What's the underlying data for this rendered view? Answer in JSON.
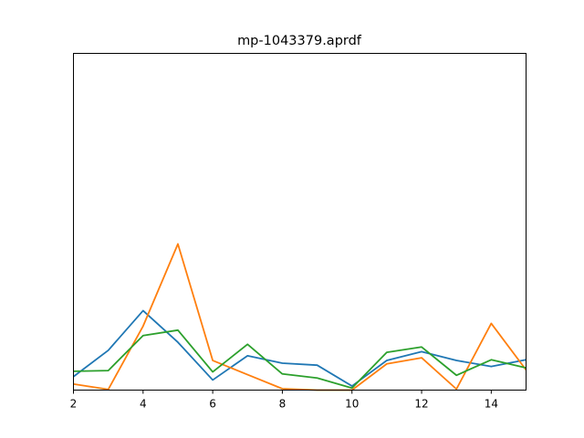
{
  "chart_data": {
    "type": "line",
    "title": "mp-1043379.aprdf",
    "xlabel": "",
    "ylabel": "",
    "xlim": [
      2,
      15
    ],
    "ylim": [
      0,
      1
    ],
    "x_ticks": [
      "2",
      "4",
      "6",
      "8",
      "10",
      "12",
      "14"
    ],
    "y_ticks": [],
    "grid": false,
    "x": [
      2,
      3,
      4,
      5,
      6,
      7,
      8,
      9,
      10,
      11,
      12,
      13,
      14,
      15
    ],
    "series": [
      {
        "color": "#1f77b4",
        "values": [
          0.04,
          0.118,
          0.236,
          0.142,
          0.03,
          0.102,
          0.08,
          0.074,
          0.012,
          0.088,
          0.114,
          0.088,
          0.07,
          0.09
        ]
      },
      {
        "color": "#ff7f0e",
        "values": [
          0.018,
          0.002,
          0.19,
          0.434,
          0.088,
          0.046,
          0.004,
          0.0,
          0.0,
          0.078,
          0.096,
          0.003,
          0.198,
          0.06
        ]
      },
      {
        "color": "#2ca02c",
        "values": [
          0.056,
          0.058,
          0.162,
          0.178,
          0.054,
          0.136,
          0.048,
          0.036,
          0.006,
          0.112,
          0.128,
          0.044,
          0.09,
          0.066
        ]
      }
    ]
  }
}
